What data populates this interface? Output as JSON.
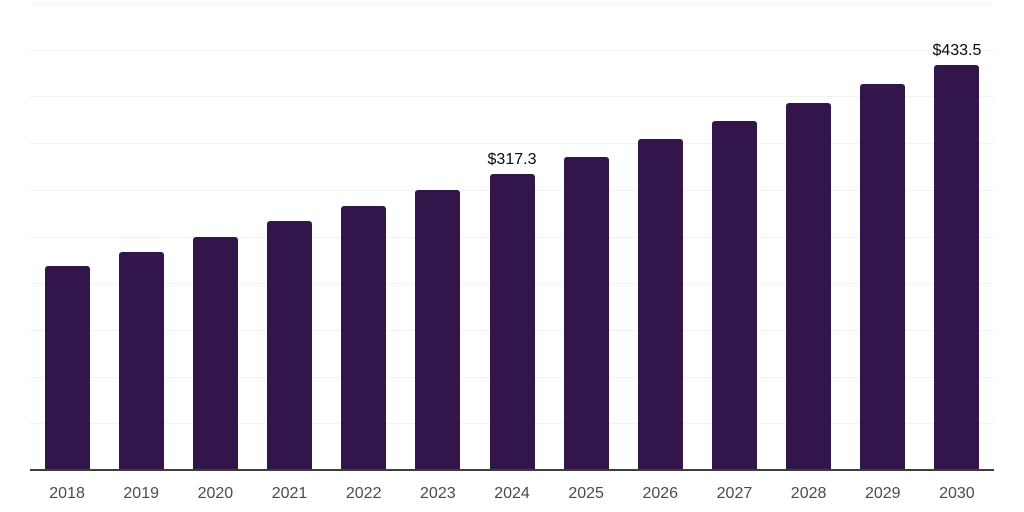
{
  "chart": {
    "background": "#ffffff",
    "bar_color": "#32154a",
    "gridline_color": "#f2f2f2",
    "axis_line_color": "#3d3d3d",
    "tick_label_color": "#4b4b4b",
    "value_label_color": "#0a0a0a"
  },
  "chart_data": {
    "type": "bar",
    "title": "",
    "xlabel": "",
    "ylabel": "",
    "categories": [
      "2018",
      "2019",
      "2020",
      "2021",
      "2022",
      "2023",
      "2024",
      "2025",
      "2026",
      "2027",
      "2028",
      "2029",
      "2030"
    ],
    "values": [
      217.9,
      233.2,
      249.9,
      266.3,
      282.7,
      299.8,
      317.3,
      335.3,
      354.2,
      373.3,
      392.9,
      413.2,
      433.5
    ],
    "value_prefix": "$",
    "labeled_points": [
      {
        "category": "2024",
        "label": "$317.3"
      },
      {
        "category": "2030",
        "label": "$433.5"
      }
    ],
    "ylim": [
      0,
      500
    ],
    "gridline_step": 50,
    "grid": true,
    "legend": "none",
    "y_axis_tick_labels": []
  }
}
